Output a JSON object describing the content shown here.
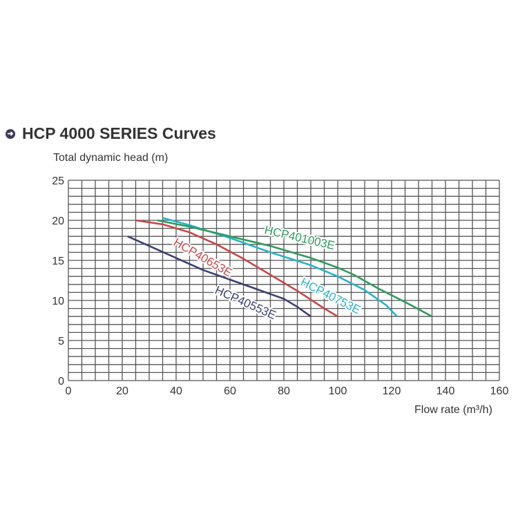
{
  "title": "HCP 4000 SERIES Curves",
  "title_icon": "arrow-circle-right-icon",
  "chart_data": {
    "type": "line",
    "title": "HCP 4000 SERIES Curves",
    "xlabel": "Flow rate (m³/h)",
    "ylabel": "Total dynamic head (m)",
    "xlim": [
      0,
      160
    ],
    "ylim": [
      0,
      25
    ],
    "x_ticks": [
      0,
      20,
      40,
      60,
      80,
      100,
      120,
      140,
      160
    ],
    "y_ticks": [
      0,
      5,
      10,
      15,
      20,
      25
    ],
    "grid": true,
    "grid_x_step": 5,
    "grid_y_step": 1,
    "legend_position": "inline labels",
    "series": [
      {
        "name": "HCP40553E",
        "color": "#3b3f72",
        "x": [
          22,
          30,
          40,
          50,
          60,
          70,
          80,
          85,
          90
        ],
        "y": [
          18,
          16.8,
          15.3,
          13.8,
          12.6,
          11.4,
          10.2,
          9.2,
          8
        ]
      },
      {
        "name": "HCP40653E",
        "color": "#c8474a",
        "x": [
          25,
          35,
          45,
          55,
          65,
          75,
          85,
          95,
          100
        ],
        "y": [
          20,
          19.5,
          18.5,
          17,
          15.2,
          13.2,
          11.2,
          9,
          8
        ]
      },
      {
        "name": "HCP40753E",
        "color": "#27b3c9",
        "x": [
          35,
          45,
          60,
          75,
          90,
          100,
          110,
          118,
          122
        ],
        "y": [
          20.3,
          19.4,
          17.8,
          16,
          14.4,
          13,
          11.3,
          9.4,
          8
        ]
      },
      {
        "name": "HCP401003E",
        "color": "#2f9b5f",
        "x": [
          33,
          45,
          60,
          75,
          90,
          100,
          106,
          115,
          125,
          135
        ],
        "y": [
          20,
          19.2,
          18,
          16.8,
          15.3,
          14.1,
          13.2,
          11.5,
          9.8,
          8
        ]
      }
    ]
  }
}
